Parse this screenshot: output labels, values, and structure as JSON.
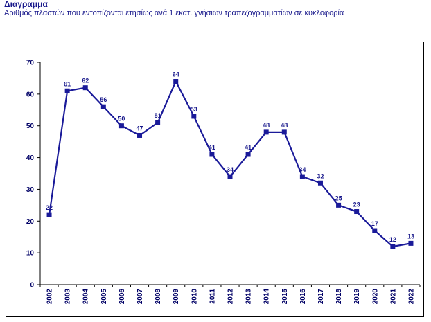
{
  "header": {
    "title": "Διάγραμμα",
    "subtitle": "Αριθμός πλαστών που εντοπίζονται ετησίως ανά 1 εκατ. γνήσιων τραπεζογραμματίων σε κυκλοφορία"
  },
  "chart_data": {
    "type": "line",
    "title": "Διάγραμμα",
    "subtitle": "Αριθμός πλαστών που εντοπίζονται ετησίως ανά 1 εκατ. γνήσιων τραπεζογραμματίων σε κυκλοφορία",
    "xlabel": "",
    "ylabel": "",
    "categories": [
      "2002",
      "2003",
      "2004",
      "2005",
      "2006",
      "2007",
      "2008",
      "2009",
      "2010",
      "2011",
      "2012",
      "2013",
      "2014",
      "2015",
      "2016",
      "2017",
      "2018",
      "2019",
      "2020",
      "2021",
      "2022"
    ],
    "series": [
      {
        "values": [
          22,
          61,
          62,
          56,
          50,
          47,
          51,
          64,
          53,
          41,
          34,
          41,
          48,
          48,
          34,
          32,
          25,
          23,
          17,
          12,
          13
        ],
        "color": "#1a1a99"
      }
    ],
    "ylim": [
      0,
      70
    ],
    "yticks": [
      0,
      10,
      20,
      30,
      40,
      50,
      60,
      70
    ],
    "grid": false,
    "legend": "none",
    "marker": "square",
    "data_labels": true
  },
  "colors": {
    "line": "#1a1a99",
    "text": "#1a1a8c",
    "axis_labels": "#000066"
  }
}
